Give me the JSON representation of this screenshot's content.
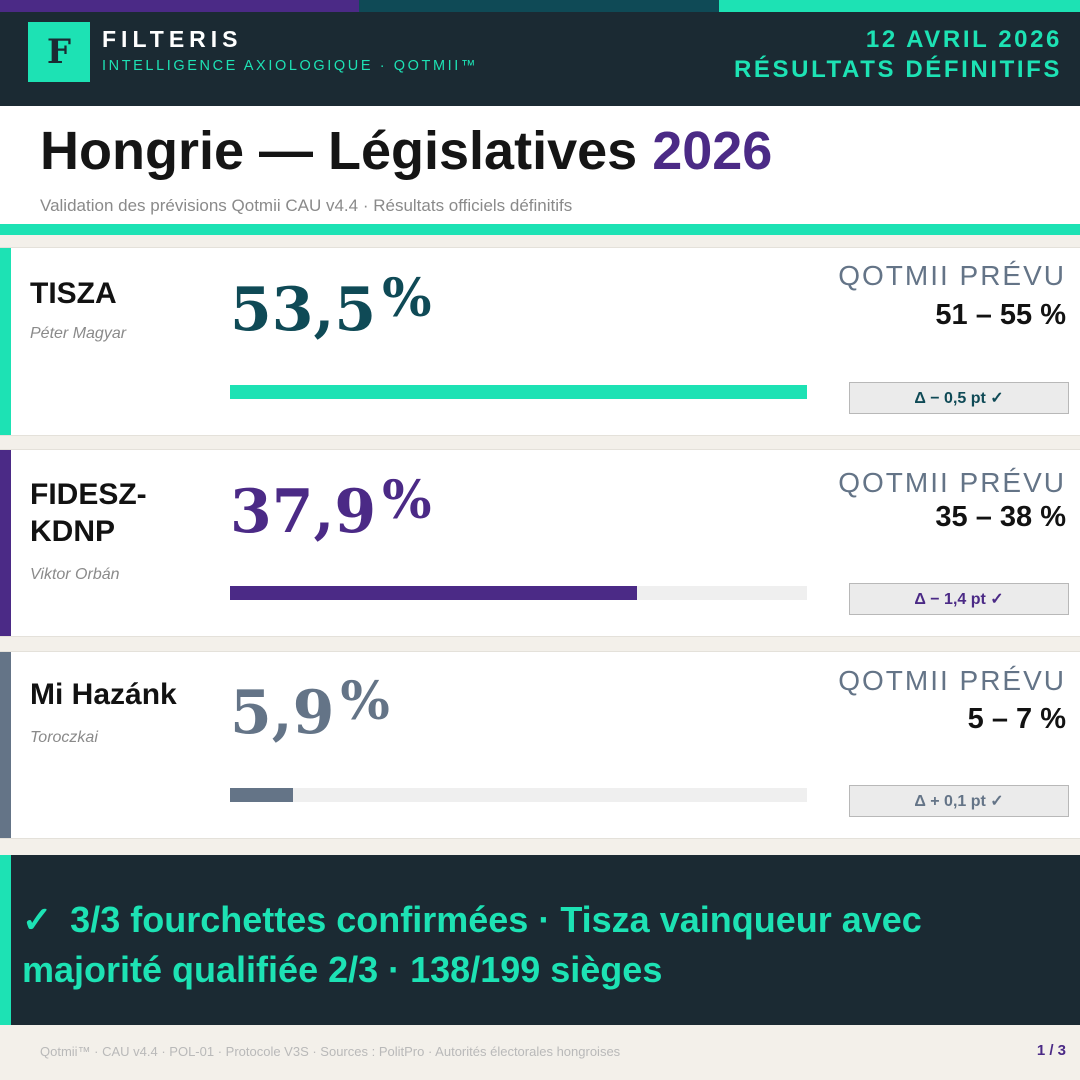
{
  "colors": {
    "teal": "#1de2b4",
    "navy": "#1b2a33",
    "purple": "#4b2a86",
    "dark_teal": "#0f4a56",
    "slate": "#647487"
  },
  "header": {
    "logo_letter": "F",
    "brand": "FILTERIS",
    "tagline": "INTELLIGENCE AXIOLOGIQUE · QOTMII™",
    "date": "12 AVRIL 2026",
    "status": "RÉSULTATS DÉFINITIFS"
  },
  "title": {
    "main": "Hongrie — Législatives",
    "year": "2026",
    "subtitle": "Validation des prévisions Qotmii CAU v4.4 · Résultats officiels définitifs"
  },
  "parties": [
    {
      "name": "TISZA",
      "leader": "Péter Magyar",
      "result": "53,5",
      "unit": "%",
      "forecast_label": "QOTMII PRÉVU",
      "forecast_range": "51 – 55 %",
      "delta": "Δ − 0,5 pt ✓",
      "bar_fraction": 1.0,
      "color": "#1de2b4",
      "accent_color": "#1de2b4",
      "result_color": "#0f4a56",
      "delta_color": "#0f4a56"
    },
    {
      "name": "FIDESZ-KDNP",
      "name_line1": "FIDESZ-",
      "name_line2": "KDNP",
      "leader": "Viktor Orbán",
      "result": "37,9",
      "unit": "%",
      "forecast_label": "QOTMII PRÉVU",
      "forecast_range": "35 – 38 %",
      "delta": "Δ − 1,4 pt ✓",
      "bar_fraction": 0.706,
      "color": "#4b2a86",
      "accent_color": "#4b2a86",
      "result_color": "#4b2a86",
      "delta_color": "#4b2a86"
    },
    {
      "name": "Mi Hazánk",
      "leader": "Toroczkai",
      "result": "5,9",
      "unit": "%",
      "forecast_label": "QOTMII PRÉVU",
      "forecast_range": "5 – 7 %",
      "delta": "Δ + 0,1 pt ✓",
      "bar_fraction": 0.11,
      "color": "#647487",
      "accent_color": "#647487",
      "result_color": "#647487",
      "delta_color": "#647487"
    }
  ],
  "summary": {
    "check": "✓",
    "text": "3/3 fourchettes confirmées · Tisza vainqueur avec majorité qualifiée 2/3 · 138/199 sièges"
  },
  "footer": {
    "note": "Qotmii™ · CAU v4.4 · POL-01 · Protocole V3S · Sources : PolitPro · Autorités électorales hongroises",
    "page": "1 / 3"
  }
}
